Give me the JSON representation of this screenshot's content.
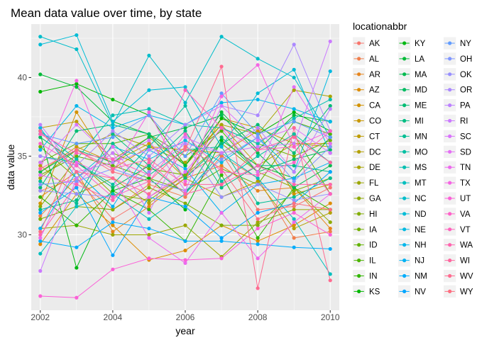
{
  "chart_data": {
    "type": "line",
    "title": "Mean data value over time, by state",
    "xlabel": "year",
    "ylabel": "data value",
    "legend_title": "locationabbr",
    "legend_position": "right",
    "grid": true,
    "xlim": [
      2001.75,
      2010.25
    ],
    "ylim": [
      25.2,
      43.4
    ],
    "x_ticks": [
      2002,
      2004,
      2006,
      2008,
      2010
    ],
    "x_tick_labels": [
      "2002",
      "2004",
      "2006",
      "2008",
      "2010"
    ],
    "y_ticks": [
      30,
      35,
      40
    ],
    "y_tick_labels": [
      "30",
      "35",
      "40"
    ],
    "x": [
      2002,
      2003,
      2004,
      2005,
      2006,
      2007,
      2008,
      2009,
      2010
    ],
    "series": [
      {
        "name": "AK",
        "color": "#F8766D",
        "values": [
          32.8,
          33.6,
          31.0,
          32.4,
          33.8,
          35.2,
          31.6,
          31.8,
          33.0
        ]
      },
      {
        "name": "AL",
        "color": "#F07E4C",
        "values": [
          31.2,
          33.6,
          31.6,
          33.2,
          32.4,
          35.0,
          33.6,
          29.8,
          30.2
        ]
      },
      {
        "name": "AR",
        "color": "#E7851E",
        "values": [
          32.4,
          34.0,
          30.2,
          31.8,
          33.6,
          34.4,
          32.8,
          33.0,
          30.4
        ]
      },
      {
        "name": "AZ",
        "color": "#DD8D00",
        "values": [
          29.4,
          32.6,
          30.6,
          28.4,
          29.0,
          30.6,
          29.6,
          30.6,
          32.0
        ]
      },
      {
        "name": "CA",
        "color": "#D39200",
        "values": [
          32.0,
          37.8,
          34.2,
          35.6,
          35.4,
          35.2,
          36.6,
          32.6,
          33.2
        ]
      },
      {
        "name": "CO",
        "color": "#C99800",
        "values": [
          34.0,
          35.6,
          34.6,
          35.8,
          33.6,
          37.4,
          36.8,
          35.8,
          35.8
        ]
      },
      {
        "name": "CT",
        "color": "#BE9C00",
        "values": [
          36.8,
          37.2,
          34.8,
          36.2,
          34.4,
          37.0,
          34.4,
          35.8,
          35.6
        ]
      },
      {
        "name": "DC",
        "color": "#B3A000",
        "values": [
          34.4,
          32.6,
          33.6,
          32.0,
          33.6,
          32.4,
          33.4,
          30.4,
          31.4
        ]
      },
      {
        "name": "DE",
        "color": "#A8A400",
        "values": [
          33.6,
          35.4,
          36.4,
          35.6,
          34.6,
          37.0,
          36.4,
          39.2,
          38.8
        ]
      },
      {
        "name": "FL",
        "color": "#9CA700",
        "values": [
          30.4,
          30.6,
          30.0,
          30.0,
          30.6,
          28.6,
          30.8,
          31.6,
          31.6
        ]
      },
      {
        "name": "GA",
        "color": "#8FAA00",
        "values": [
          31.8,
          34.8,
          32.6,
          32.2,
          33.8,
          35.8,
          34.0,
          33.0,
          30.8
        ]
      },
      {
        "name": "HI",
        "color": "#81AD00",
        "values": [
          31.0,
          31.8,
          31.6,
          33.0,
          32.0,
          30.6,
          30.6,
          32.8,
          33.6
        ]
      },
      {
        "name": "IA",
        "color": "#73B000",
        "values": [
          35.6,
          33.6,
          35.2,
          34.2,
          33.8,
          36.8,
          35.8,
          35.0,
          36.0
        ]
      },
      {
        "name": "ID",
        "color": "#62B200",
        "values": [
          33.8,
          35.0,
          34.4,
          33.6,
          32.8,
          34.2,
          33.2,
          36.4,
          32.6
        ]
      },
      {
        "name": "IL",
        "color": "#4DB400",
        "values": [
          34.6,
          35.8,
          35.8,
          36.4,
          35.0,
          36.6,
          34.0,
          37.2,
          36.4
        ]
      },
      {
        "name": "IN",
        "color": "#30B600",
        "values": [
          32.4,
          30.6,
          32.8,
          31.6,
          29.6,
          33.8,
          29.8,
          33.0,
          31.6
        ]
      },
      {
        "name": "KS",
        "color": "#00B700",
        "values": [
          39.1,
          39.6,
          38.6,
          37.6,
          34.4,
          37.4,
          36.4,
          37.8,
          36.6
        ]
      },
      {
        "name": "KY",
        "color": "#00B813",
        "values": [
          36.4,
          27.9,
          32.8,
          33.6,
          31.6,
          36.0,
          34.4,
          33.6,
          36.2
        ]
      },
      {
        "name": "LA",
        "color": "#00BA38",
        "values": [
          40.2,
          39.4,
          37.2,
          36.4,
          34.4,
          37.8,
          35.4,
          37.6,
          37.2
        ]
      },
      {
        "name": "MA",
        "color": "#00BA4F",
        "values": [
          34.0,
          35.4,
          34.6,
          36.2,
          36.8,
          37.6,
          35.2,
          33.0,
          34.4
        ]
      },
      {
        "name": "MD",
        "color": "#00BB62",
        "values": [
          36.2,
          34.6,
          33.0,
          34.4,
          32.6,
          36.2,
          34.0,
          34.8,
          35.4
        ]
      },
      {
        "name": "ME",
        "color": "#00BC73",
        "values": [
          33.0,
          36.6,
          37.0,
          36.4,
          33.6,
          35.8,
          37.0,
          35.2,
          38.2
        ]
      },
      {
        "name": "MI",
        "color": "#00BD83",
        "values": [
          31.6,
          32.2,
          36.4,
          34.4,
          36.6,
          33.0,
          34.4,
          34.4,
          34.0
        ]
      },
      {
        "name": "MN",
        "color": "#00BE93",
        "values": [
          33.4,
          32.0,
          35.8,
          33.8,
          35.4,
          35.6,
          32.0,
          32.4,
          33.6
        ]
      },
      {
        "name": "MO",
        "color": "#00BFA2",
        "values": [
          35.0,
          34.6,
          33.2,
          35.6,
          38.2,
          33.4,
          35.0,
          36.4,
          34.6
        ]
      },
      {
        "name": "MS",
        "color": "#00BFB0",
        "values": [
          36.6,
          34.8,
          37.6,
          38.0,
          37.0,
          36.8,
          35.8,
          37.4,
          38.6
        ]
      },
      {
        "name": "MT",
        "color": "#00BFBE",
        "values": [
          28.8,
          31.8,
          32.6,
          31.0,
          32.6,
          35.2,
          33.6,
          31.0,
          27.5
        ]
      },
      {
        "name": "NC",
        "color": "#00BDCA",
        "values": [
          42.6,
          41.8,
          37.0,
          41.4,
          38.4,
          42.6,
          41.2,
          40.0,
          36.2
        ]
      },
      {
        "name": "ND",
        "color": "#00BCD6",
        "values": [
          42.1,
          42.7,
          37.2,
          39.2,
          39.4,
          35.6,
          39.0,
          40.5,
          35.2
        ]
      },
      {
        "name": "NE",
        "color": "#00B9E1",
        "values": [
          36.8,
          33.6,
          35.6,
          34.8,
          36.0,
          34.6,
          36.2,
          34.0,
          40.4
        ]
      },
      {
        "name": "NH",
        "color": "#00B6EB",
        "values": [
          35.4,
          38.2,
          36.8,
          37.6,
          37.0,
          38.4,
          38.6,
          38.0,
          37.2
        ]
      },
      {
        "name": "NJ",
        "color": "#00B2F3",
        "values": [
          30.4,
          34.0,
          31.8,
          35.4,
          34.2,
          31.4,
          33.2,
          33.6,
          34.6
        ]
      },
      {
        "name": "NM",
        "color": "#00ACFB",
        "values": [
          29.6,
          29.2,
          30.8,
          30.4,
          29.6,
          29.6,
          29.4,
          29.2,
          29.1
        ]
      },
      {
        "name": "NV",
        "color": "#00A6FF",
        "values": [
          31.4,
          33.0,
          28.7,
          32.4,
          31.8,
          29.8,
          31.4,
          32.0,
          34.0
        ]
      },
      {
        "name": "NY",
        "color": "#619CFF",
        "values": [
          36.4,
          35.8,
          36.2,
          37.6,
          35.0,
          39.0,
          36.4,
          37.2,
          36.2
        ]
      },
      {
        "name": "OH",
        "color": "#7F96FF",
        "values": [
          33.2,
          33.4,
          34.2,
          33.4,
          32.8,
          34.8,
          36.2,
          33.4,
          35.6
        ]
      },
      {
        "name": "OK",
        "color": "#978FFF",
        "values": [
          32.8,
          32.6,
          32.4,
          34.0,
          35.8,
          32.4,
          33.2,
          32.2,
          32.6
        ]
      },
      {
        "name": "OR",
        "color": "#AB88FF",
        "values": [
          35.0,
          34.4,
          36.6,
          35.0,
          37.0,
          38.2,
          37.6,
          42.1,
          36.6
        ]
      },
      {
        "name": "PA",
        "color": "#BC81FF",
        "values": [
          37.0,
          34.0,
          34.6,
          35.4,
          35.8,
          35.2,
          36.8,
          34.0,
          38.0
        ]
      },
      {
        "name": "RI",
        "color": "#CB7AFF",
        "values": [
          27.7,
          33.6,
          35.2,
          31.4,
          36.2,
          35.2,
          35.6,
          35.8,
          42.3
        ]
      },
      {
        "name": "SC",
        "color": "#D973FC",
        "values": [
          34.6,
          37.0,
          34.8,
          36.0,
          32.8,
          38.2,
          36.0,
          36.8,
          35.2
        ]
      },
      {
        "name": "SD",
        "color": "#E46EF5",
        "values": [
          33.8,
          33.2,
          35.6,
          32.4,
          34.0,
          36.8,
          34.0,
          39.4,
          35.8
        ]
      },
      {
        "name": "TN",
        "color": "#ED69EE",
        "values": [
          29.8,
          34.6,
          33.6,
          29.8,
          28.2,
          31.4,
          28.5,
          30.8,
          32.6
        ]
      },
      {
        "name": "TX",
        "color": "#F564E3",
        "values": [
          34.2,
          39.8,
          34.0,
          37.8,
          33.4,
          38.8,
          40.8,
          35.6,
          36.6
        ]
      },
      {
        "name": "UT",
        "color": "#FB61D7",
        "values": [
          26.1,
          26.0,
          27.8,
          28.5,
          28.4,
          28.5,
          30.4,
          31.4,
          30.0
        ]
      },
      {
        "name": "VA",
        "color": "#FF61C9",
        "values": [
          35.8,
          34.4,
          32.4,
          33.4,
          36.4,
          34.0,
          33.8,
          34.6,
          36.6
        ]
      },
      {
        "name": "VT",
        "color": "#FF62BC",
        "values": [
          36.4,
          35.2,
          34.8,
          33.8,
          39.2,
          36.8,
          35.4,
          35.6,
          32.6
        ]
      },
      {
        "name": "WA",
        "color": "#FF64AE",
        "values": [
          30.0,
          33.2,
          32.2,
          34.6,
          32.6,
          33.2,
          34.4,
          33.2,
          33.2
        ]
      },
      {
        "name": "WI",
        "color": "#FF679F",
        "values": [
          34.2,
          35.4,
          34.2,
          34.8,
          33.2,
          33.2,
          35.4,
          36.2,
          34.6
        ]
      },
      {
        "name": "WV",
        "color": "#FF6B90",
        "values": [
          36.6,
          34.0,
          33.6,
          32.6,
          35.4,
          40.7,
          26.6,
          36.8,
          27.1
        ]
      },
      {
        "name": "WY",
        "color": "#FD6F81",
        "values": [
          30.2,
          35.4,
          34.0,
          33.4,
          35.6,
          34.2,
          31.0,
          32.0,
          31.6
        ]
      }
    ]
  }
}
